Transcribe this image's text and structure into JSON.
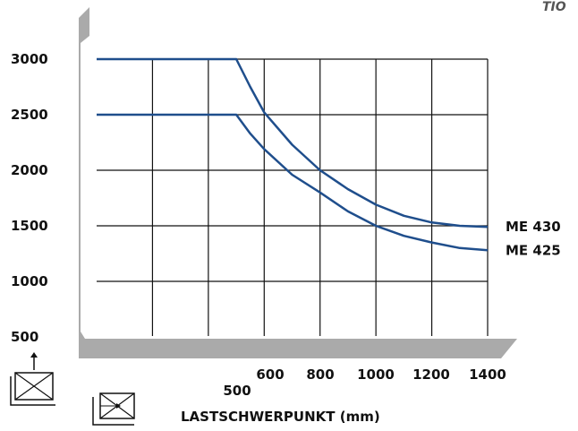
{
  "corner_mark": "TIO",
  "chart_data": {
    "type": "line",
    "title": "",
    "xlabel": "LASTSCHWERPUNKT (mm)",
    "ylabel": "",
    "xlim": [
      0,
      1400
    ],
    "ylim": [
      500,
      3000
    ],
    "x_ticks": [
      500,
      600,
      800,
      1000,
      1200,
      1400
    ],
    "y_ticks": [
      500,
      1000,
      1500,
      2000,
      2500,
      3000
    ],
    "x_tick_labels": [
      "500",
      "600",
      "800",
      "1000",
      "1200",
      "1400"
    ],
    "y_tick_labels": [
      "500",
      "1000",
      "1500",
      "2000",
      "2500",
      "3000"
    ],
    "grid": true,
    "series": [
      {
        "name": "ME 430",
        "color": "#1f4e8c",
        "x": [
          0,
          500,
          550,
          600,
          700,
          800,
          900,
          1000,
          1100,
          1200,
          1300,
          1400
        ],
        "y": [
          3000,
          3000,
          2750,
          2520,
          2230,
          2000,
          1830,
          1690,
          1590,
          1530,
          1500,
          1490
        ]
      },
      {
        "name": "ME 425",
        "color": "#1f4e8c",
        "x": [
          0,
          500,
          550,
          600,
          700,
          800,
          900,
          1000,
          1100,
          1200,
          1300,
          1400
        ],
        "y": [
          2500,
          2500,
          2330,
          2190,
          1960,
          1800,
          1630,
          1500,
          1410,
          1350,
          1300,
          1280
        ]
      }
    ]
  },
  "icons": [
    "pallet-lift-icon",
    "pallet-load-icon"
  ]
}
